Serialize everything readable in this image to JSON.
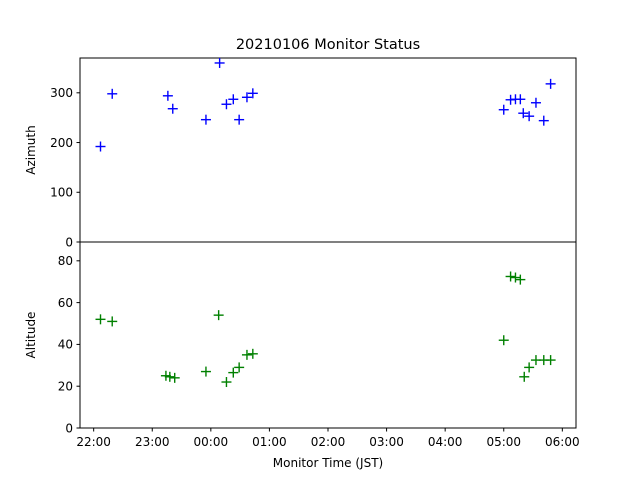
{
  "chart_data": {
    "type": "scatter",
    "title": "20210106 Monitor Status",
    "xlabel": "Monitor Time (JST)",
    "x_ticks": [
      "22:00",
      "23:00",
      "00:00",
      "01:00",
      "02:00",
      "03:00",
      "04:00",
      "05:00",
      "06:00"
    ],
    "x_range": [
      "2021-01-05 21:46",
      "2021-01-06 06:14"
    ],
    "marker": "+",
    "panels": [
      {
        "ylabel": "Azimuth",
        "ylim": [
          0,
          370
        ],
        "y_ticks": [
          0,
          100,
          200,
          300
        ],
        "color": "#0000ff",
        "points": [
          {
            "x": "2021-01-05 22:07",
            "y": 192
          },
          {
            "x": "2021-01-05 22:19",
            "y": 298
          },
          {
            "x": "2021-01-05 23:16",
            "y": 294
          },
          {
            "x": "2021-01-05 23:21",
            "y": 268
          },
          {
            "x": "2021-01-05 23:55",
            "y": 246
          },
          {
            "x": "2021-01-06 00:09",
            "y": 360
          },
          {
            "x": "2021-01-06 00:16",
            "y": 277
          },
          {
            "x": "2021-01-06 00:23",
            "y": 287
          },
          {
            "x": "2021-01-06 00:29",
            "y": 246
          },
          {
            "x": "2021-01-06 00:37",
            "y": 291
          },
          {
            "x": "2021-01-06 00:43",
            "y": 299
          },
          {
            "x": "2021-01-06 05:00",
            "y": 266
          },
          {
            "x": "2021-01-06 05:07",
            "y": 286
          },
          {
            "x": "2021-01-06 05:12",
            "y": 287
          },
          {
            "x": "2021-01-06 05:17",
            "y": 287
          },
          {
            "x": "2021-01-06 05:20",
            "y": 259
          },
          {
            "x": "2021-01-06 05:26",
            "y": 253
          },
          {
            "x": "2021-01-06 05:33",
            "y": 280
          },
          {
            "x": "2021-01-06 05:41",
            "y": 244
          },
          {
            "x": "2021-01-06 05:48",
            "y": 318
          }
        ]
      },
      {
        "ylabel": "Altitude",
        "ylim": [
          0,
          89
        ],
        "y_ticks": [
          0,
          20,
          40,
          60,
          80
        ],
        "color": "#008000",
        "points": [
          {
            "x": "2021-01-05 22:07",
            "y": 52
          },
          {
            "x": "2021-01-05 22:19",
            "y": 51
          },
          {
            "x": "2021-01-05 23:14",
            "y": 25
          },
          {
            "x": "2021-01-05 23:18",
            "y": 24.5
          },
          {
            "x": "2021-01-05 23:23",
            "y": 24
          },
          {
            "x": "2021-01-05 23:55",
            "y": 27
          },
          {
            "x": "2021-01-06 00:08",
            "y": 54
          },
          {
            "x": "2021-01-06 00:16",
            "y": 22
          },
          {
            "x": "2021-01-06 00:23",
            "y": 26.5
          },
          {
            "x": "2021-01-06 00:29",
            "y": 29
          },
          {
            "x": "2021-01-06 00:37",
            "y": 35
          },
          {
            "x": "2021-01-06 00:43",
            "y": 35.5
          },
          {
            "x": "2021-01-06 05:00",
            "y": 42
          },
          {
            "x": "2021-01-06 05:07",
            "y": 72.5
          },
          {
            "x": "2021-01-06 05:12",
            "y": 72
          },
          {
            "x": "2021-01-06 05:17",
            "y": 71
          },
          {
            "x": "2021-01-06 05:21",
            "y": 24.5
          },
          {
            "x": "2021-01-06 05:26",
            "y": 29
          },
          {
            "x": "2021-01-06 05:33",
            "y": 32.5
          },
          {
            "x": "2021-01-06 05:41",
            "y": 32.5
          },
          {
            "x": "2021-01-06 05:48",
            "y": 32.5
          }
        ]
      }
    ]
  }
}
